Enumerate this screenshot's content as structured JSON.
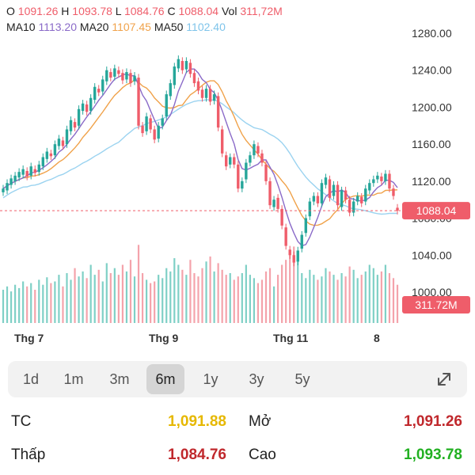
{
  "header": {
    "open_label": "O",
    "open_value": "1091.26",
    "high_label": "H",
    "high_value": "1093.78",
    "low_label": "L",
    "low_value": "1084.76",
    "close_label": "C",
    "close_value": "1088.04",
    "vol_label": "Vol",
    "vol_value": "311,72M",
    "ma10_label": "MA10",
    "ma10_value": "1113.20",
    "ma20_label": "MA20",
    "ma20_value": "1107.45",
    "ma50_label": "MA50",
    "ma50_value": "1102.40"
  },
  "colors": {
    "up": "#26a69a",
    "down": "#ef5d6a",
    "ma10": "#8a6ac8",
    "ma20": "#f0a24a",
    "ma50": "#9bd3f0",
    "tc": "#e6b800",
    "dark_red": "#c0282c",
    "green": "#22b022"
  },
  "chart_data": {
    "type": "candlestick",
    "y_ticks": [
      "1280.00",
      "1240.00",
      "1200.00",
      "1160.00",
      "1120.00",
      "1080.00",
      "1040.00",
      "1000.00"
    ],
    "ylim": [
      1000,
      1280
    ],
    "x_labels": [
      "Thg 7",
      "Thg 9",
      "Thg 11",
      "8"
    ],
    "price_line": 1088.04,
    "price_tag": "1088.04",
    "volume_tag": "311.72M",
    "grid": false,
    "candles": [
      {
        "o": 1108,
        "c": 1112
      },
      {
        "o": 1110,
        "c": 1118
      },
      {
        "o": 1116,
        "c": 1123
      },
      {
        "o": 1120,
        "c": 1126
      },
      {
        "o": 1124,
        "c": 1130
      },
      {
        "o": 1127,
        "c": 1133
      },
      {
        "o": 1131,
        "c": 1125
      },
      {
        "o": 1126,
        "c": 1136
      },
      {
        "o": 1133,
        "c": 1129
      },
      {
        "o": 1130,
        "c": 1138
      },
      {
        "o": 1136,
        "c": 1146
      },
      {
        "o": 1144,
        "c": 1152
      },
      {
        "o": 1150,
        "c": 1147
      },
      {
        "o": 1148,
        "c": 1160
      },
      {
        "o": 1158,
        "c": 1166
      },
      {
        "o": 1164,
        "c": 1158
      },
      {
        "o": 1160,
        "c": 1176
      },
      {
        "o": 1174,
        "c": 1186
      },
      {
        "o": 1184,
        "c": 1178
      },
      {
        "o": 1180,
        "c": 1198
      },
      {
        "o": 1196,
        "c": 1204
      },
      {
        "o": 1203,
        "c": 1195
      },
      {
        "o": 1196,
        "c": 1210
      },
      {
        "o": 1208,
        "c": 1222
      },
      {
        "o": 1220,
        "c": 1216
      },
      {
        "o": 1217,
        "c": 1230
      },
      {
        "o": 1228,
        "c": 1240
      },
      {
        "o": 1238,
        "c": 1232
      },
      {
        "o": 1233,
        "c": 1242
      },
      {
        "o": 1240,
        "c": 1236
      },
      {
        "o": 1237,
        "c": 1229
      },
      {
        "o": 1230,
        "c": 1238
      },
      {
        "o": 1237,
        "c": 1226
      },
      {
        "o": 1228,
        "c": 1234
      },
      {
        "o": 1232,
        "c": 1180
      },
      {
        "o": 1180,
        "c": 1172
      },
      {
        "o": 1174,
        "c": 1190
      },
      {
        "o": 1188,
        "c": 1176
      },
      {
        "o": 1176,
        "c": 1165
      },
      {
        "o": 1166,
        "c": 1180
      },
      {
        "o": 1180,
        "c": 1188
      },
      {
        "o": 1190,
        "c": 1214
      },
      {
        "o": 1212,
        "c": 1226
      },
      {
        "o": 1224,
        "c": 1244
      },
      {
        "o": 1242,
        "c": 1252
      },
      {
        "o": 1250,
        "c": 1240
      },
      {
        "o": 1241,
        "c": 1250
      },
      {
        "o": 1248,
        "c": 1236
      },
      {
        "o": 1237,
        "c": 1226
      },
      {
        "o": 1228,
        "c": 1218
      },
      {
        "o": 1219,
        "c": 1210
      },
      {
        "o": 1210,
        "c": 1220
      },
      {
        "o": 1220,
        "c": 1206
      },
      {
        "o": 1207,
        "c": 1214
      },
      {
        "o": 1212,
        "c": 1178
      },
      {
        "o": 1176,
        "c": 1150
      },
      {
        "o": 1148,
        "c": 1136
      },
      {
        "o": 1138,
        "c": 1146
      },
      {
        "o": 1146,
        "c": 1138
      },
      {
        "o": 1138,
        "c": 1112
      },
      {
        "o": 1112,
        "c": 1120
      },
      {
        "o": 1122,
        "c": 1140
      },
      {
        "o": 1140,
        "c": 1148
      },
      {
        "o": 1148,
        "c": 1160
      },
      {
        "o": 1158,
        "c": 1150
      },
      {
        "o": 1150,
        "c": 1140
      },
      {
        "o": 1138,
        "c": 1120
      },
      {
        "o": 1120,
        "c": 1094
      },
      {
        "o": 1092,
        "c": 1100
      },
      {
        "o": 1102,
        "c": 1090
      },
      {
        "o": 1090,
        "c": 1072
      },
      {
        "o": 1070,
        "c": 1050
      },
      {
        "o": 1046,
        "c": 1040
      },
      {
        "o": 1040,
        "c": 1032
      },
      {
        "o": 1033,
        "c": 1045
      },
      {
        "o": 1047,
        "c": 1062
      },
      {
        "o": 1064,
        "c": 1080
      },
      {
        "o": 1082,
        "c": 1098
      },
      {
        "o": 1098,
        "c": 1104
      },
      {
        "o": 1104,
        "c": 1096
      },
      {
        "o": 1096,
        "c": 1118
      },
      {
        "o": 1116,
        "c": 1124
      },
      {
        "o": 1122,
        "c": 1102
      },
      {
        "o": 1104,
        "c": 1116
      },
      {
        "o": 1116,
        "c": 1094
      },
      {
        "o": 1092,
        "c": 1110
      },
      {
        "o": 1110,
        "c": 1100
      },
      {
        "o": 1100,
        "c": 1086
      },
      {
        "o": 1086,
        "c": 1098
      },
      {
        "o": 1098,
        "c": 1104
      },
      {
        "o": 1103,
        "c": 1096
      },
      {
        "o": 1098,
        "c": 1112
      },
      {
        "o": 1110,
        "c": 1118
      },
      {
        "o": 1118,
        "c": 1122
      },
      {
        "o": 1122,
        "c": 1126
      },
      {
        "o": 1125,
        "c": 1120
      },
      {
        "o": 1120,
        "c": 1128
      },
      {
        "o": 1128,
        "c": 1112
      },
      {
        "o": 1112,
        "c": 1104
      },
      {
        "o": 1091.26,
        "c": 1088.04
      }
    ],
    "volume": [
      40,
      44,
      38,
      46,
      42,
      50,
      44,
      48,
      40,
      52,
      46,
      55,
      48,
      50,
      58,
      44,
      60,
      52,
      66,
      56,
      62,
      54,
      70,
      58,
      64,
      50,
      72,
      60,
      66,
      58,
      70,
      62,
      76,
      56,
      94,
      60,
      52,
      48,
      50,
      58,
      54,
      66,
      62,
      78,
      70,
      64,
      58,
      76,
      60,
      56,
      66,
      74,
      80,
      62,
      72,
      64,
      58,
      60,
      52,
      56,
      60,
      70,
      58,
      54,
      48,
      52,
      62,
      66,
      44,
      58,
      70,
      76,
      88,
      92,
      78,
      60,
      54,
      64,
      58,
      52,
      56,
      66,
      62,
      58,
      52,
      60,
      56,
      68,
      64,
      54,
      58,
      62,
      70,
      66,
      58,
      62,
      70,
      60,
      54,
      46
    ]
  },
  "ranges": {
    "items": [
      "1d",
      "1m",
      "3m",
      "6m",
      "1y",
      "3y",
      "5y"
    ],
    "active": "6m"
  },
  "stats": {
    "tc_label": "TC",
    "tc_value": "1,091.88",
    "open_label": "Mở",
    "open_value": "1,091.26",
    "low_label": "Thấp",
    "low_value": "1,084.76",
    "high_label": "Cao",
    "high_value": "1,093.78"
  }
}
